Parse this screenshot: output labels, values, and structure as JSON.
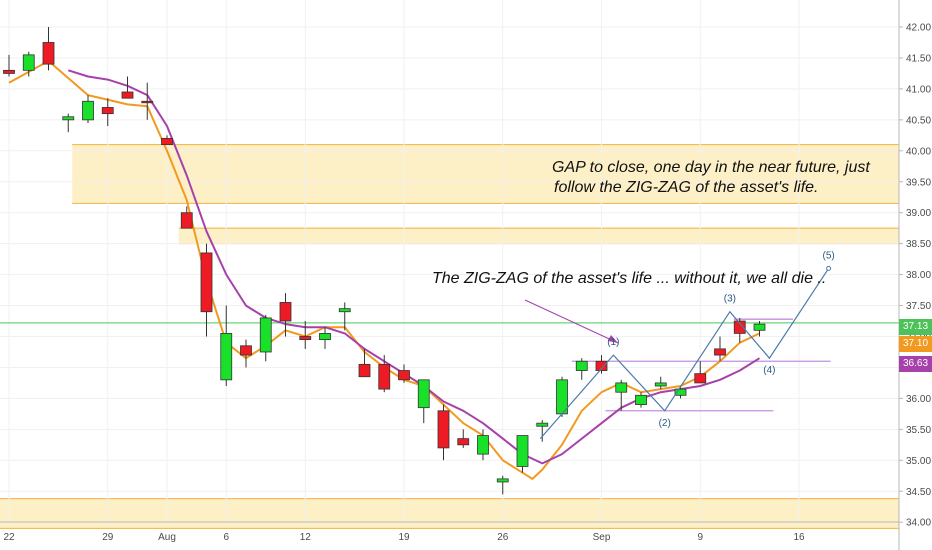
{
  "chart_data": {
    "type": "candlestick",
    "x_tick_labels": [
      "22",
      "29",
      "Aug",
      "6",
      "12",
      "19",
      "26",
      "Sep",
      "9",
      "16"
    ],
    "y_ticks": [
      "42.00",
      "41.50",
      "41.00",
      "40.50",
      "40.00",
      "39.50",
      "39.00",
      "38.50",
      "38.00",
      "37.50",
      "37.00",
      "36.50",
      "36.00",
      "35.50",
      "35.00",
      "34.50",
      "34.00"
    ],
    "ylim": [
      33.9,
      42.1
    ],
    "candles": [
      {
        "o": 41.3,
        "h": 41.55,
        "l": 41.2,
        "c": 41.25
      },
      {
        "o": 41.3,
        "h": 41.6,
        "l": 41.2,
        "c": 41.55
      },
      {
        "o": 41.75,
        "h": 42.0,
        "l": 41.3,
        "c": 41.4
      },
      {
        "o": 40.5,
        "h": 40.6,
        "l": 40.3,
        "c": 40.55
      },
      {
        "o": 40.5,
        "h": 40.9,
        "l": 40.45,
        "c": 40.8
      },
      {
        "o": 40.7,
        "h": 40.85,
        "l": 40.4,
        "c": 40.6
      },
      {
        "o": 40.95,
        "h": 41.2,
        "l": 40.85,
        "c": 40.85
      },
      {
        "o": 40.8,
        "h": 41.1,
        "l": 40.5,
        "c": 40.78
      },
      {
        "o": 40.2,
        "h": 40.25,
        "l": 40.1,
        "c": 40.1
      },
      {
        "o": 39.0,
        "h": 39.1,
        "l": 38.75,
        "c": 38.75
      },
      {
        "o": 38.35,
        "h": 38.5,
        "l": 37.0,
        "c": 37.4
      },
      {
        "o": 36.3,
        "h": 37.5,
        "l": 36.2,
        "c": 37.05
      },
      {
        "o": 36.85,
        "h": 36.95,
        "l": 36.5,
        "c": 36.7
      },
      {
        "o": 36.75,
        "h": 37.35,
        "l": 36.6,
        "c": 37.3
      },
      {
        "o": 37.55,
        "h": 37.7,
        "l": 37.0,
        "c": 37.25
      },
      {
        "o": 37.0,
        "h": 37.25,
        "l": 36.8,
        "c": 36.95
      },
      {
        "o": 36.95,
        "h": 37.15,
        "l": 36.8,
        "c": 37.05
      },
      {
        "o": 37.4,
        "h": 37.55,
        "l": 37.1,
        "c": 37.45
      },
      {
        "o": 36.55,
        "h": 36.8,
        "l": 36.35,
        "c": 36.35
      },
      {
        "o": 36.55,
        "h": 36.7,
        "l": 36.1,
        "c": 36.15
      },
      {
        "o": 36.45,
        "h": 36.55,
        "l": 36.25,
        "c": 36.3
      },
      {
        "o": 35.85,
        "h": 36.3,
        "l": 35.6,
        "c": 36.3
      },
      {
        "o": 35.8,
        "h": 35.9,
        "l": 35.0,
        "c": 35.2
      },
      {
        "o": 35.35,
        "h": 35.5,
        "l": 35.2,
        "c": 35.25
      },
      {
        "o": 35.1,
        "h": 35.5,
        "l": 35.0,
        "c": 35.4
      },
      {
        "o": 34.65,
        "h": 34.75,
        "l": 34.45,
        "c": 34.7
      },
      {
        "o": 34.9,
        "h": 35.4,
        "l": 34.8,
        "c": 35.4
      },
      {
        "o": 35.55,
        "h": 35.65,
        "l": 35.3,
        "c": 35.6
      },
      {
        "o": 35.75,
        "h": 36.35,
        "l": 35.7,
        "c": 36.3
      },
      {
        "o": 36.45,
        "h": 36.65,
        "l": 36.3,
        "c": 36.6
      },
      {
        "o": 36.6,
        "h": 36.7,
        "l": 36.4,
        "c": 36.45
      },
      {
        "o": 36.1,
        "h": 36.3,
        "l": 35.8,
        "c": 36.25
      },
      {
        "o": 35.9,
        "h": 36.1,
        "l": 35.85,
        "c": 36.05
      },
      {
        "o": 36.2,
        "h": 36.35,
        "l": 36.15,
        "c": 36.25
      },
      {
        "o": 36.05,
        "h": 36.2,
        "l": 36.0,
        "c": 36.15
      },
      {
        "o": 36.4,
        "h": 36.6,
        "l": 36.25,
        "c": 36.25
      },
      {
        "o": 36.8,
        "h": 37.0,
        "l": 36.6,
        "c": 36.7
      },
      {
        "o": 37.25,
        "h": 37.3,
        "l": 36.9,
        "c": 37.05
      },
      {
        "o": 37.1,
        "h": 37.25,
        "l": 37.0,
        "c": 37.2
      }
    ],
    "moving_averages": [
      {
        "color": "#f29a1f",
        "values": [
          [
            0,
            41.1
          ],
          [
            2,
            41.45
          ],
          [
            4,
            40.9
          ],
          [
            6,
            40.75
          ],
          [
            7,
            40.72
          ],
          [
            8,
            40.0
          ],
          [
            9,
            39.2
          ],
          [
            10,
            37.9
          ],
          [
            11,
            36.9
          ],
          [
            12,
            36.65
          ],
          [
            13,
            36.85
          ],
          [
            14,
            37.1
          ],
          [
            15,
            37.0
          ],
          [
            16,
            37.15
          ],
          [
            17,
            37.15
          ],
          [
            18,
            36.75
          ],
          [
            19,
            36.5
          ],
          [
            20,
            36.3
          ],
          [
            21,
            36.2
          ],
          [
            22,
            35.9
          ],
          [
            23,
            35.6
          ],
          [
            24,
            35.4
          ],
          [
            25,
            35.0
          ],
          [
            26,
            34.8
          ],
          [
            26.5,
            34.7
          ],
          [
            27,
            34.85
          ],
          [
            28,
            35.25
          ],
          [
            29,
            35.8
          ],
          [
            30,
            36.1
          ],
          [
            31,
            36.25
          ],
          [
            32,
            36.1
          ],
          [
            33,
            36.15
          ],
          [
            34,
            36.2
          ],
          [
            35,
            36.35
          ],
          [
            36,
            36.6
          ],
          [
            37,
            36.9
          ],
          [
            38,
            37.05
          ]
        ]
      },
      {
        "color": "#a641ab",
        "values": [
          [
            3,
            41.3
          ],
          [
            4,
            41.2
          ],
          [
            5,
            41.15
          ],
          [
            6,
            41.05
          ],
          [
            7,
            40.9
          ],
          [
            8,
            40.4
          ],
          [
            9,
            39.6
          ],
          [
            10,
            38.7
          ],
          [
            11,
            38.0
          ],
          [
            12,
            37.5
          ],
          [
            13,
            37.3
          ],
          [
            14,
            37.2
          ],
          [
            15,
            37.15
          ],
          [
            16,
            37.15
          ],
          [
            17,
            37.05
          ],
          [
            18,
            36.8
          ],
          [
            19,
            36.6
          ],
          [
            20,
            36.4
          ],
          [
            21,
            36.2
          ],
          [
            22,
            35.95
          ],
          [
            23,
            35.8
          ],
          [
            24,
            35.6
          ],
          [
            25,
            35.35
          ],
          [
            26,
            35.1
          ],
          [
            27,
            34.95
          ],
          [
            28,
            35.1
          ],
          [
            29,
            35.35
          ],
          [
            30,
            35.6
          ],
          [
            31,
            35.85
          ],
          [
            32,
            36.0
          ],
          [
            33,
            36.1
          ],
          [
            34,
            36.15
          ],
          [
            35,
            36.2
          ],
          [
            36,
            36.3
          ],
          [
            37,
            36.45
          ],
          [
            38,
            36.65
          ]
        ]
      }
    ],
    "zones": [
      {
        "from": 39.15,
        "to": 40.1,
        "x_start": 3.2
      },
      {
        "from": 38.5,
        "to": 38.75,
        "x_start": 8.6
      },
      {
        "from": 33.9,
        "to": 34.38,
        "x_start": -1
      }
    ],
    "horizontal_levels": [
      {
        "price": 37.22,
        "color": "#6bd67b",
        "x_start": -1
      },
      {
        "price": 37.28,
        "color": "#c58ee0",
        "x_start": 36.7,
        "x_end": 39.7
      },
      {
        "price": 36.6,
        "color": "#c58ee0",
        "x_start": 28.5,
        "x_end": 41.6
      },
      {
        "price": 35.8,
        "color": "#c58ee0",
        "x_start": 30.2,
        "x_end": 38.7
      }
    ],
    "zigzag": [
      [
        26.9,
        35.35
      ],
      [
        30.6,
        36.7
      ],
      [
        33.2,
        35.8
      ],
      [
        36.5,
        37.4
      ],
      [
        38.5,
        36.65
      ],
      [
        41.5,
        38.1
      ]
    ],
    "wave_labels": [
      "(1)",
      "(2)",
      "(3)",
      "(4)",
      "(5)"
    ],
    "annotations": [
      "GAP to close, one day in the near future, just",
      "follow the ZIG-ZAG of the asset's life.",
      "The ZIG-ZAG of the asset's life ... without it, we all die .."
    ],
    "price_labels": [
      {
        "value": "37.13",
        "color": "#4cc259"
      },
      {
        "value": "37.10",
        "color": "#f29a1f"
      },
      {
        "value": "36.63",
        "color": "#a641ab"
      }
    ]
  }
}
